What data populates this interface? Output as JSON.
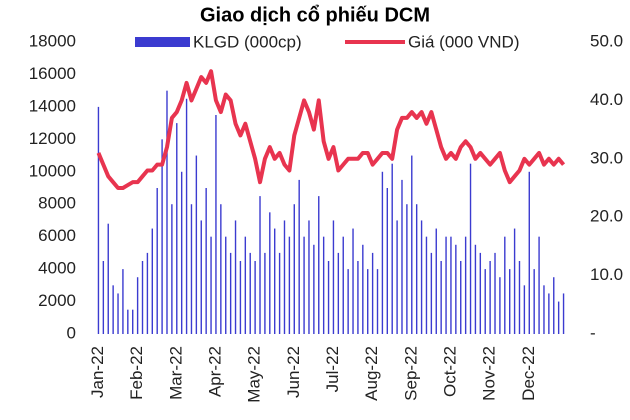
{
  "chart_data": {
    "type": "bar_line",
    "title": "Giao dịch cổ phiếu DCM",
    "categories": [
      "Jan-22",
      null,
      null,
      null,
      null,
      null,
      null,
      null,
      "Feb-22",
      null,
      null,
      null,
      null,
      null,
      null,
      null,
      "Mar-22",
      null,
      null,
      null,
      null,
      null,
      null,
      null,
      "Apr-22",
      null,
      null,
      null,
      null,
      null,
      null,
      null,
      "May-22",
      null,
      null,
      null,
      null,
      null,
      null,
      null,
      "Jun-22",
      null,
      null,
      null,
      null,
      null,
      null,
      null,
      "Jul-22",
      null,
      null,
      null,
      null,
      null,
      null,
      null,
      "Aug-22",
      null,
      null,
      null,
      null,
      null,
      null,
      null,
      "Sep-22",
      null,
      null,
      null,
      null,
      null,
      null,
      null,
      "Oct-22",
      null,
      null,
      null,
      null,
      null,
      null,
      null,
      "Nov-22",
      null,
      null,
      null,
      null,
      null,
      null,
      null,
      "Dec-22",
      null,
      null,
      null,
      null,
      null,
      null,
      null
    ],
    "series": [
      {
        "name": "KLGD (000cp)",
        "color": "#3b3bd0",
        "kind": "bar",
        "values": [
          14000,
          4500,
          6800,
          3000,
          2500,
          4000,
          1500,
          1500,
          3500,
          4500,
          5000,
          6500,
          9000,
          12000,
          15000,
          8000,
          13000,
          10000,
          14500,
          8000,
          11000,
          7000,
          9000,
          6000,
          13500,
          8000,
          6000,
          5000,
          7000,
          4500,
          6000,
          5000,
          4500,
          8500,
          5000,
          7500,
          6500,
          5000,
          7000,
          6000,
          8000,
          9500,
          6000,
          7000,
          5500,
          8500,
          6000,
          4500,
          7000,
          5000,
          6000,
          4000,
          6500,
          4500,
          5500,
          4000,
          5000,
          4000,
          10000,
          9000,
          10500,
          7000,
          9500,
          8000,
          11000,
          8000,
          7000,
          6000,
          5000,
          6500,
          4500,
          6000,
          6000,
          5500,
          4500,
          6000,
          10500,
          5500,
          5000,
          4000,
          4500,
          5000,
          3500,
          6000,
          4000,
          6500,
          4500,
          3000,
          10000,
          4000,
          6000,
          3000,
          2500,
          3500,
          2000,
          2500
        ]
      },
      {
        "name": "Giá (000 VND)",
        "color": "#e8344f",
        "kind": "line",
        "axis": "y2",
        "values": [
          31,
          29,
          27,
          26,
          25,
          25,
          25.5,
          26,
          26,
          27,
          28,
          28,
          29,
          29,
          32,
          37,
          38,
          40,
          43,
          40,
          42,
          44,
          43,
          45,
          40,
          38,
          41,
          40,
          36,
          34,
          36,
          33,
          30,
          26,
          30,
          32,
          30,
          31,
          29,
          28,
          34,
          37,
          40,
          38,
          35,
          40,
          33,
          30,
          32,
          28,
          29,
          30,
          30,
          30,
          31,
          31,
          29,
          30,
          31,
          31,
          30,
          35,
          37,
          37,
          38,
          37,
          38,
          36,
          38,
          35,
          32,
          30,
          31,
          30,
          32,
          33,
          32,
          30,
          31,
          30,
          29,
          30,
          31,
          28,
          26,
          27,
          28,
          30,
          29,
          30,
          31,
          29,
          30,
          29,
          30,
          29
        ]
      }
    ],
    "ylim": [
      0,
      18000
    ],
    "yticks": [
      0,
      2000,
      4000,
      6000,
      8000,
      10000,
      12000,
      14000,
      16000,
      18000
    ],
    "y2lim": [
      0,
      50
    ],
    "y2ticks": [
      {
        "value": 0,
        "label": "-"
      },
      {
        "value": 10,
        "label": "10.0"
      },
      {
        "value": 20,
        "label": "20.0"
      },
      {
        "value": 30,
        "label": "30.0"
      },
      {
        "value": 40,
        "label": "40.0"
      },
      {
        "value": 50,
        "label": "50.0"
      }
    ]
  }
}
